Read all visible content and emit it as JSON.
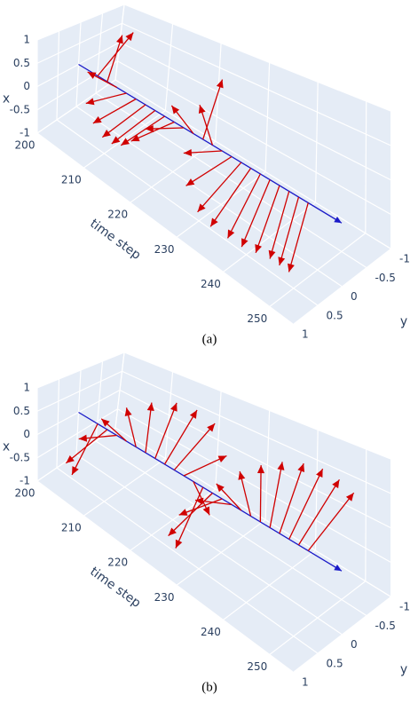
{
  "chart_data": [
    {
      "type": "quiver3d",
      "caption": "(a)",
      "x_label": "x",
      "t_label": "time step",
      "y_label": "y",
      "tlim": [
        200,
        255
      ],
      "xlim": [
        -1,
        1
      ],
      "ylim": [
        -1,
        1
      ],
      "tticks": [
        200,
        210,
        220,
        230,
        240,
        250
      ],
      "xticks": [
        -1,
        -0.5,
        0,
        0.5,
        1
      ],
      "yticks": [
        -1,
        -0.5,
        0,
        0.5,
        1
      ],
      "axis_color": "#1a1ac8",
      "vectors": {
        "color": "#d00000",
        "t": [
          204,
          206,
          208,
          210,
          212,
          214,
          216,
          218,
          220,
          222,
          224,
          226,
          228,
          230,
          232,
          234,
          236,
          238,
          240,
          242,
          244,
          246,
          248
        ],
        "x": [
          0.6,
          0.9,
          0.7,
          0.3,
          0.05,
          -0.1,
          -0.1,
          0,
          0.2,
          0.5,
          0.85,
          0.9,
          0.95,
          0.5,
          0.1,
          -0.3,
          -0.5,
          -0.7,
          -0.8,
          -0.85,
          -0.9,
          -0.9,
          -0.9
        ],
        "y": [
          -0.8,
          -0.3,
          0.7,
          0.95,
          1,
          1,
          1,
          1,
          0.98,
          0.87,
          0.5,
          -0.4,
          0.3,
          0.85,
          1,
          0.95,
          0.87,
          0.7,
          0.6,
          0.5,
          0.4,
          0.4,
          0.4
        ]
      }
    },
    {
      "type": "quiver3d",
      "caption": "(b)",
      "x_label": "x",
      "t_label": "time step",
      "y_label": "y",
      "tlim": [
        200,
        255
      ],
      "xlim": [
        -1,
        1
      ],
      "ylim": [
        -1,
        1
      ],
      "tticks": [
        200,
        210,
        220,
        230,
        240,
        250
      ],
      "xticks": [
        -1,
        -0.5,
        0,
        0.5,
        1
      ],
      "yticks": [
        -1,
        -0.5,
        0,
        0.5,
        1
      ],
      "axis_color": "#1a1ac8",
      "vectors": {
        "color": "#d00000",
        "t": [
          204,
          206,
          208,
          210,
          212,
          214,
          216,
          218,
          220,
          222,
          224,
          226,
          228,
          230,
          232,
          234,
          236,
          238,
          240,
          242,
          244,
          246,
          248
        ],
        "x": [
          -0.8,
          -0.2,
          0.4,
          0.8,
          0.97,
          1,
          0.9,
          0.7,
          0.4,
          -0.2,
          -0.9,
          -0.8,
          -0.2,
          0.3,
          0.6,
          0.85,
          0.97,
          1,
          0.97,
          0.85,
          0.7,
          0.5,
          0.3
        ],
        "y": [
          0.6,
          0.98,
          0.9,
          0.6,
          0.25,
          -0.1,
          -0.45,
          -0.7,
          -0.9,
          -0.98,
          -0.4,
          0.6,
          0.98,
          0.95,
          0.8,
          0.55,
          0.25,
          0,
          -0.25,
          -0.5,
          -0.7,
          -0.85,
          -0.95
        ]
      }
    }
  ]
}
